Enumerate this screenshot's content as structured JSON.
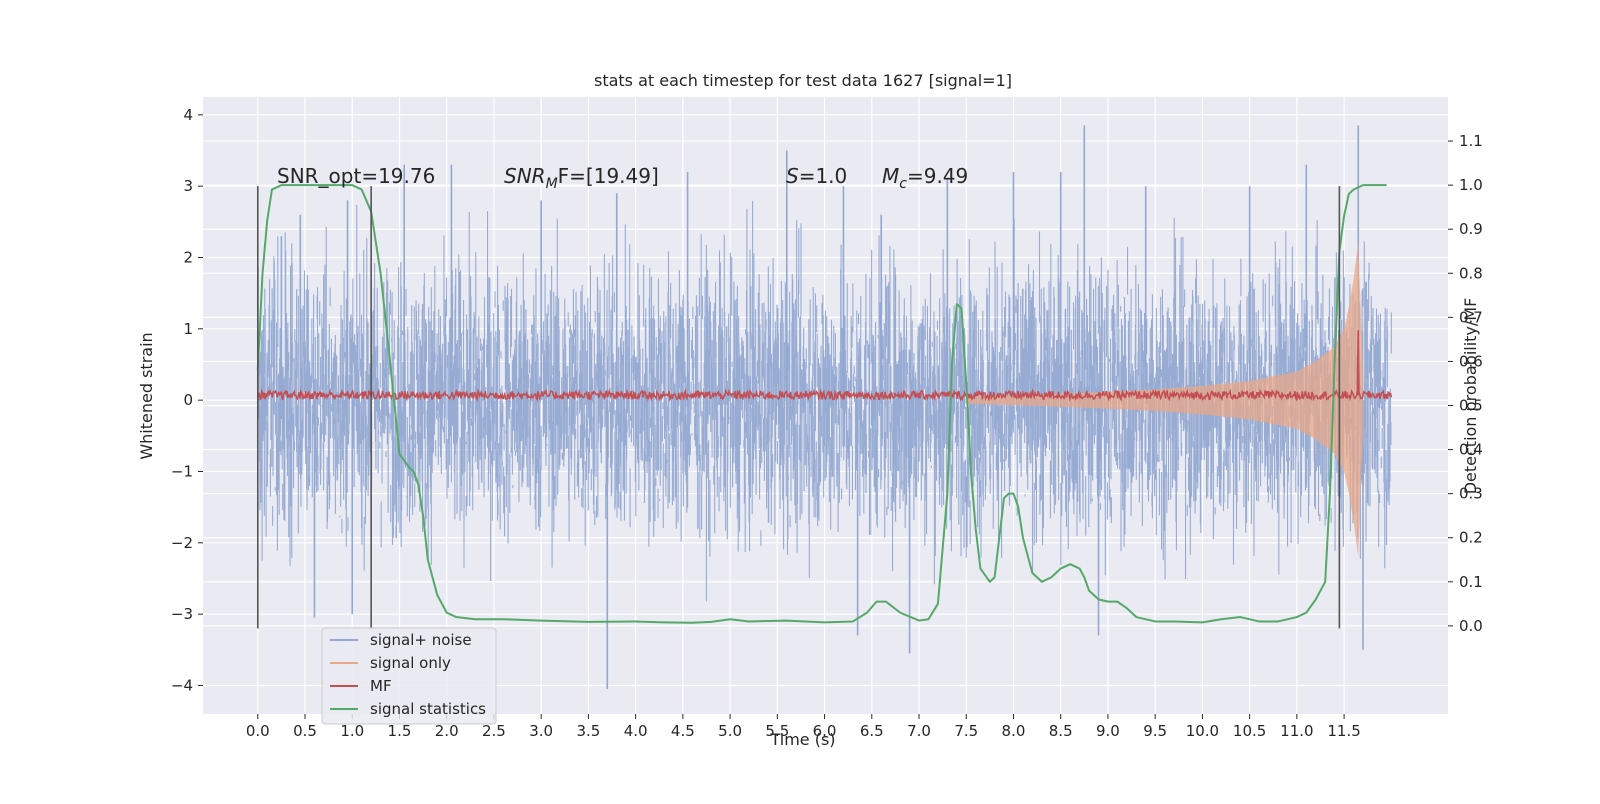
{
  "chart_data": {
    "type": "line",
    "title": "stats at each timestep for test data 1627 [signal=1]",
    "xlabel": "Time (s)",
    "ylabel_left": "Whitened strain",
    "ylabel_right": "Detection probability/MF",
    "xlim": [
      -0.58,
      12.6
    ],
    "ylim_left": [
      -4.4,
      4.25
    ],
    "ylim_right": [
      -0.2,
      1.2
    ],
    "x_ticks": [
      "0.0",
      "0.5",
      "1.0",
      "1.5",
      "2.0",
      "2.5",
      "3.0",
      "3.5",
      "4.0",
      "4.5",
      "5.0",
      "5.5",
      "6.0",
      "6.5",
      "7.0",
      "7.5",
      "8.0",
      "8.5",
      "9.0",
      "9.5",
      "10.0",
      "10.5",
      "11.0",
      "11.5"
    ],
    "y_ticks_left": [
      "−4",
      "−3",
      "−2",
      "−1",
      "0",
      "1",
      "2",
      "3",
      "4"
    ],
    "y_ticks_right": [
      "0.0",
      "0.1",
      "0.2",
      "0.3",
      "0.4",
      "0.5",
      "0.6",
      "0.7",
      "0.8",
      "0.9",
      "1.0",
      "1.1"
    ],
    "grid": true,
    "legend_position": "lower-left",
    "annotations": {
      "snr_opt": "SNR_opt=19.76",
      "snr_mf_prefix": "SNR",
      "snr_mf_sub": "M",
      "snr_mf_suffix": "F=[19.49]",
      "s_label": "S",
      "s_value": "=1.0",
      "mc_label": "M",
      "mc_sub": "c",
      "mc_value": "=9.49"
    },
    "vertical_markers_x": [
      0.0,
      1.2,
      11.45
    ],
    "vertical_marker_range_left": [
      -3.2,
      3.0
    ],
    "series": [
      {
        "name": "signal+ noise",
        "color": "#92a8d1",
        "axis": "left",
        "x_range": [
          0.0,
          12.0
        ],
        "envelope_peak_values_x": [
          0.25,
          0.45,
          0.95,
          1.55,
          2.05,
          3.0,
          3.8,
          4.55,
          5.6,
          6.2,
          6.6,
          7.3,
          8.0,
          8.5,
          8.75,
          9.4,
          10.5,
          11.1,
          11.65
        ],
        "envelope_peak_values_y": [
          2.3,
          2.6,
          2.8,
          3.3,
          3.3,
          2.8,
          2.9,
          3.2,
          3.5,
          3.0,
          2.6,
          3.1,
          3.2,
          3.2,
          3.85,
          3.0,
          3.0,
          3.3,
          3.85
        ],
        "envelope_trough_values_x": [
          0.6,
          1.0,
          3.7,
          6.35,
          6.9,
          8.9,
          11.7
        ],
        "envelope_trough_values_y": [
          -3.05,
          -3.0,
          -4.05,
          -3.3,
          -3.55,
          -3.3,
          -3.5
        ]
      },
      {
        "name": "signal only",
        "color": "#e8a88a",
        "axis": "left",
        "x": [
          7.5,
          8.5,
          9.5,
          10.0,
          10.5,
          11.0,
          11.2,
          11.4,
          11.5,
          11.55,
          11.6,
          11.65,
          11.7
        ],
        "amplitude": [
          0.05,
          0.09,
          0.15,
          0.2,
          0.27,
          0.4,
          0.55,
          0.75,
          1.0,
          1.3,
          1.7,
          2.2,
          0.4
        ]
      },
      {
        "name": "MF",
        "color": "#c44e52",
        "axis": "left",
        "baseline": 0.07,
        "noise_amplitude": 0.06,
        "spike_x": 11.65,
        "spike_y": 0.98
      },
      {
        "name": "signal statistics",
        "color": "#55a868",
        "axis": "right",
        "x": [
          0.0,
          0.05,
          0.1,
          0.15,
          0.25,
          0.5,
          0.8,
          1.0,
          1.1,
          1.2,
          1.3,
          1.4,
          1.5,
          1.6,
          1.65,
          1.7,
          1.75,
          1.8,
          1.9,
          2.0,
          2.1,
          2.3,
          2.6,
          3.0,
          3.5,
          4.0,
          4.3,
          4.6,
          4.8,
          5.0,
          5.2,
          5.6,
          6.0,
          6.3,
          6.45,
          6.55,
          6.65,
          6.8,
          7.0,
          7.1,
          7.2,
          7.3,
          7.35,
          7.4,
          7.45,
          7.5,
          7.55,
          7.6,
          7.65,
          7.75,
          7.8,
          7.85,
          7.9,
          7.95,
          8.0,
          8.05,
          8.1,
          8.2,
          8.3,
          8.4,
          8.5,
          8.6,
          8.7,
          8.75,
          8.8,
          8.9,
          9.0,
          9.1,
          9.2,
          9.3,
          9.5,
          9.7,
          10.0,
          10.2,
          10.4,
          10.6,
          10.8,
          11.0,
          11.1,
          11.2,
          11.3,
          11.35,
          11.4,
          11.45,
          11.5,
          11.55,
          11.6,
          11.7,
          11.8,
          11.95
        ],
        "y": [
          0.58,
          0.8,
          0.92,
          0.99,
          1.0,
          1.0,
          1.0,
          1.0,
          0.99,
          0.94,
          0.8,
          0.6,
          0.39,
          0.36,
          0.35,
          0.32,
          0.25,
          0.15,
          0.07,
          0.03,
          0.02,
          0.015,
          0.015,
          0.012,
          0.009,
          0.01,
          0.008,
          0.007,
          0.009,
          0.015,
          0.01,
          0.012,
          0.008,
          0.01,
          0.03,
          0.055,
          0.055,
          0.03,
          0.012,
          0.015,
          0.05,
          0.3,
          0.6,
          0.73,
          0.72,
          0.55,
          0.35,
          0.22,
          0.13,
          0.1,
          0.11,
          0.2,
          0.29,
          0.3,
          0.3,
          0.27,
          0.2,
          0.12,
          0.1,
          0.11,
          0.13,
          0.14,
          0.13,
          0.11,
          0.08,
          0.06,
          0.055,
          0.055,
          0.04,
          0.02,
          0.01,
          0.01,
          0.008,
          0.015,
          0.02,
          0.01,
          0.01,
          0.02,
          0.03,
          0.06,
          0.1,
          0.3,
          0.6,
          0.85,
          0.93,
          0.98,
          0.99,
          1.0,
          1.0,
          1.0
        ]
      }
    ]
  }
}
